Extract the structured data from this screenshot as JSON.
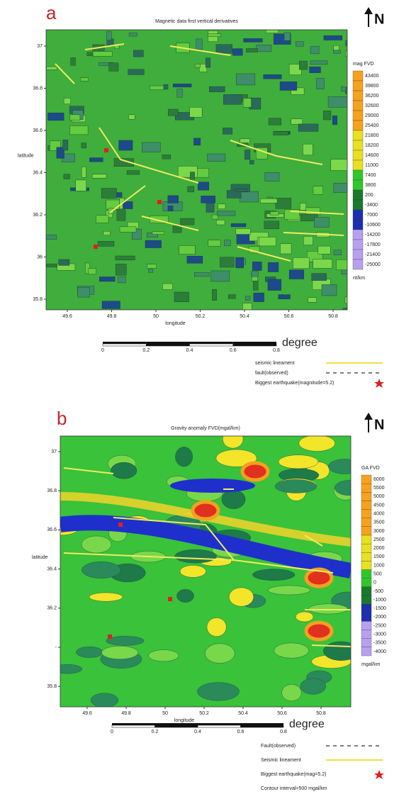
{
  "panels": [
    {
      "label": "a",
      "title": "Magnetic data first vertical derivatives",
      "north": "N",
      "y_axis_label": "latitude",
      "x_axis_label": "longitude",
      "yticks": [
        "37",
        "36.8",
        "36.6",
        "36.4",
        "36.2",
        "36",
        "35.8"
      ],
      "xticks": [
        "49.6",
        "49.8",
        "50",
        "50.2",
        "50.4",
        "50.6",
        "50.8"
      ],
      "colorbar_title": "mag FVD",
      "colorbar_labels": [
        "43400",
        "39800",
        "36200",
        "32600",
        "29000",
        "25400",
        "21800",
        "18200",
        "14600",
        "11000",
        "7400",
        "3800",
        "200",
        "-3400",
        "-7000",
        "-10600",
        "-14200",
        "-17800",
        "-21400",
        "-25000"
      ],
      "colorbar_unit": "nt/km",
      "scale_labels": [
        "0",
        "0.2",
        "0.4",
        "0.6",
        "0.8"
      ],
      "scale_unit": "degree",
      "legend": [
        "seismic lineament",
        "fault(observed)",
        "Biggest earthquake(magnitude=5.2)"
      ]
    },
    {
      "label": "b",
      "title": "Gravity anomaly FVD(mgal/km)",
      "north": "N",
      "y_axis_label": "latitude",
      "x_axis_label": "longitude",
      "yticks": [
        "37",
        "36.8",
        "36.6",
        "36.4",
        "36.2",
        "-",
        "35.8"
      ],
      "xticks": [
        "49.6",
        "49.8",
        "50",
        "50.2",
        "50.4",
        "50.6",
        "50.8"
      ],
      "colorbar_title": "GA FVD",
      "colorbar_labels": [
        "6000",
        "5500",
        "5000",
        "4500",
        "4000",
        "3500",
        "3000",
        "2500",
        "2000",
        "1500",
        "1000",
        "500",
        "0",
        "-500",
        "-1000",
        "-1500",
        "-2000",
        "-2500",
        "-3000",
        "-3500",
        "-4000"
      ],
      "colorbar_unit": "mgal/km",
      "scale_labels": [
        "0",
        "0.2",
        "0.4",
        "0.6",
        "0.8"
      ],
      "scale_unit": "degree",
      "legend": [
        "Fault(observed)",
        "Seismic lineament",
        "Biggest earthquake(mag=5.2)",
        "Contour interval=500 mgal/km"
      ]
    }
  ]
}
